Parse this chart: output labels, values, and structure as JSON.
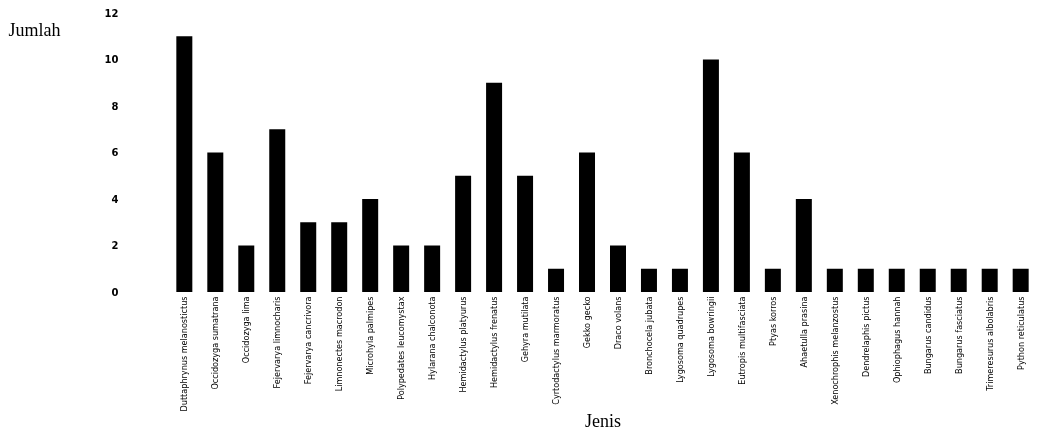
{
  "chart_data": {
    "type": "bar",
    "xlabel": "Jenis",
    "ylabel": "Jumlah",
    "categories": [
      "Duttaphrynus melanostictus",
      "Occidozyga sumatrana",
      "Occidozyga lima",
      "Fejervarya limnocharis",
      "Fejervarya cancrivora",
      "Limnonectes macrodon",
      "Microhyla palmipes",
      "Polypedates leucomystax",
      "Hylarana chalconota",
      "Hemidactylus platyurus",
      "Hemidactylus frenatus",
      "Gehyra mutilata",
      "Cyrtodactylus marmoratus",
      "Gekko gecko",
      "Draco volans",
      "Bronchocela jubata",
      "Lygosoma quadrupes",
      "Lygosoma bowringii",
      "Eutropis multifasciata",
      "Ptyas korros",
      "Ahaetulla prasina",
      "Xenochrophis melanzostus",
      "Dendrelaphis pictus",
      "Ophiophagus hannah",
      "Bungarus candidus",
      "Bungarus fasciatus",
      "Trimeresurus albolabris",
      "Python reticulatus"
    ],
    "values": [
      11,
      6,
      2,
      7,
      3,
      3,
      4,
      2,
      2,
      5,
      9,
      5,
      1,
      6,
      2,
      1,
      1,
      10,
      6,
      1,
      4,
      1,
      1,
      1,
      1,
      1,
      1,
      1
    ],
    "color": "#000000",
    "ylim": [
      0,
      12
    ],
    "yticks": [
      0,
      2,
      4,
      6,
      8,
      10,
      12
    ],
    "grid": false
  }
}
